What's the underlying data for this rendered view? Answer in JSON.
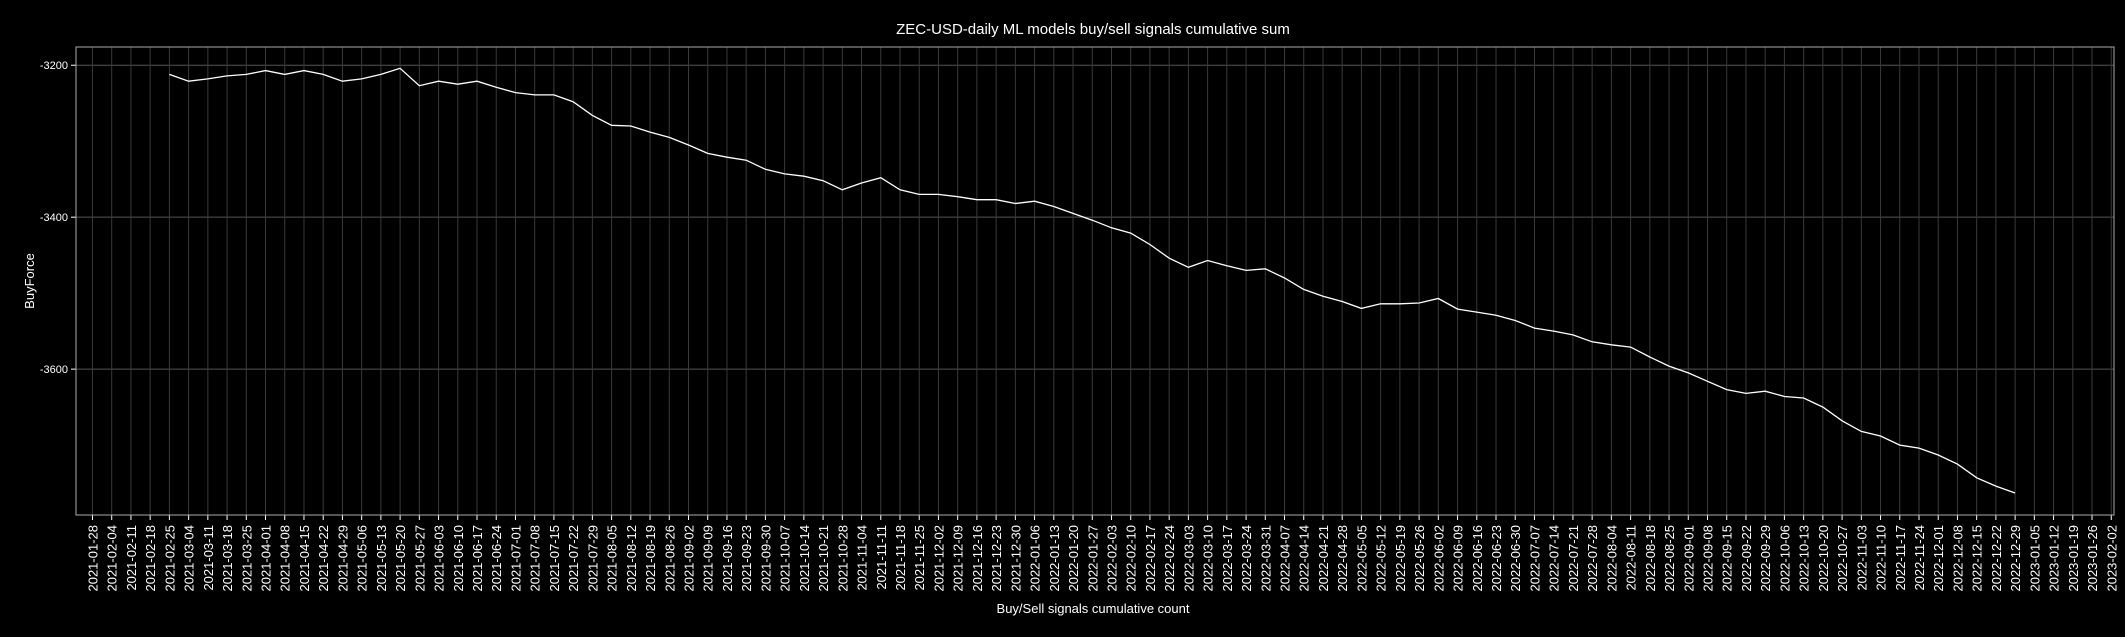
{
  "chart_data": {
    "type": "line",
    "title": "ZEC-USD-daily ML models buy/sell signals cumulative sum",
    "xlabel": "Buy/Sell signals cumulative count",
    "ylabel": "BuyForce",
    "color": "#ffffff",
    "grid": true,
    "x": [
      "2021-02-25",
      "2021-03-04",
      "2021-03-11",
      "2021-03-18",
      "2021-03-25",
      "2021-04-01",
      "2021-04-08",
      "2021-04-15",
      "2021-04-22",
      "2021-04-29",
      "2021-05-06",
      "2021-05-13",
      "2021-05-20",
      "2021-05-27",
      "2021-06-03",
      "2021-06-10",
      "2021-06-17",
      "2021-06-24",
      "2021-07-01",
      "2021-07-08",
      "2021-07-15",
      "2021-07-22",
      "2021-07-29",
      "2021-08-05",
      "2021-08-12",
      "2021-08-19",
      "2021-08-26",
      "2021-09-02",
      "2021-09-09",
      "2021-09-16",
      "2021-09-23",
      "2021-09-30",
      "2021-10-07",
      "2021-10-14",
      "2021-10-21",
      "2021-10-28",
      "2021-11-04",
      "2021-11-11",
      "2021-11-18",
      "2021-11-25",
      "2021-12-02",
      "2021-12-09",
      "2021-12-16",
      "2021-12-23",
      "2021-12-30",
      "2022-01-06",
      "2022-01-13",
      "2022-01-20",
      "2022-01-27",
      "2022-02-03",
      "2022-02-10",
      "2022-02-17",
      "2022-02-24",
      "2022-03-03",
      "2022-03-10",
      "2022-03-17",
      "2022-03-24",
      "2022-03-31",
      "2022-04-07",
      "2022-04-14",
      "2022-04-21",
      "2022-04-28",
      "2022-05-05",
      "2022-05-12",
      "2022-05-19",
      "2022-05-26",
      "2022-06-02",
      "2022-06-09",
      "2022-06-16",
      "2022-06-23",
      "2022-06-30",
      "2022-07-07",
      "2022-07-14",
      "2022-07-21",
      "2022-07-28",
      "2022-08-04",
      "2022-08-11",
      "2022-08-18",
      "2022-08-25",
      "2022-09-01",
      "2022-09-08",
      "2022-09-15",
      "2022-09-22",
      "2022-09-29",
      "2022-10-06",
      "2022-10-13",
      "2022-10-20",
      "2022-10-27",
      "2022-11-03",
      "2022-11-10",
      "2022-11-17",
      "2022-11-24",
      "2022-12-01",
      "2022-12-08",
      "2022-12-15",
      "2022-12-22",
      "2022-12-29"
    ],
    "values": [
      -3212,
      -3221,
      -3218,
      -3214,
      -3212,
      -3207,
      -3212,
      -3207,
      -3212,
      -3221,
      -3218,
      -3212,
      -3204,
      -3227,
      -3221,
      -3225,
      -3221,
      -3229,
      -3236,
      -3239,
      -3239,
      -3248,
      -3266,
      -3279,
      -3280,
      -3288,
      -3295,
      -3305,
      -3316,
      -3321,
      -3325,
      -3337,
      -3343,
      -3346,
      -3352,
      -3364,
      -3355,
      -3348,
      -3364,
      -3370,
      -3370,
      -3373,
      -3377,
      -3377,
      -3382,
      -3379,
      -3386,
      -3395,
      -3404,
      -3414,
      -3421,
      -3436,
      -3454,
      -3466,
      -3457,
      -3464,
      -3470,
      -3468,
      -3480,
      -3495,
      -3504,
      -3511,
      -3520,
      -3514,
      -3514,
      -3513,
      -3507,
      -3521,
      -3525,
      -3529,
      -3536,
      -3546,
      -3550,
      -3555,
      -3564,
      -3568,
      -3571,
      -3584,
      -3596,
      -3605,
      -3616,
      -3627,
      -3632,
      -3629,
      -3636,
      -3638,
      -3650,
      -3668,
      -3682,
      -3688,
      -3700,
      -3704,
      -3713,
      -3725,
      -3743,
      -3754,
      -3763
    ],
    "xlim": [
      "2021-01-22",
      "2023-02-03"
    ],
    "xticks": [
      "2021-01-28",
      "2021-02-04",
      "2021-02-11",
      "2021-02-18",
      "2021-02-25",
      "2021-03-04",
      "2021-03-11",
      "2021-03-18",
      "2021-03-25",
      "2021-04-01",
      "2021-04-08",
      "2021-04-15",
      "2021-04-22",
      "2021-04-29",
      "2021-05-06",
      "2021-05-13",
      "2021-05-20",
      "2021-05-27",
      "2021-06-03",
      "2021-06-10",
      "2021-06-17",
      "2021-06-24",
      "2021-07-01",
      "2021-07-08",
      "2021-07-15",
      "2021-07-22",
      "2021-07-29",
      "2021-08-05",
      "2021-08-12",
      "2021-08-19",
      "2021-08-26",
      "2021-09-02",
      "2021-09-09",
      "2021-09-16",
      "2021-09-23",
      "2021-09-30",
      "2021-10-07",
      "2021-10-14",
      "2021-10-21",
      "2021-10-28",
      "2021-11-04",
      "2021-11-11",
      "2021-11-18",
      "2021-11-25",
      "2021-12-02",
      "2021-12-09",
      "2021-12-16",
      "2021-12-23",
      "2021-12-30",
      "2022-01-06",
      "2022-01-13",
      "2022-01-20",
      "2022-01-27",
      "2022-02-03",
      "2022-02-10",
      "2022-02-17",
      "2022-02-24",
      "2022-03-03",
      "2022-03-10",
      "2022-03-17",
      "2022-03-24",
      "2022-03-31",
      "2022-04-07",
      "2022-04-14",
      "2022-04-21",
      "2022-04-28",
      "2022-05-05",
      "2022-05-12",
      "2022-05-19",
      "2022-05-26",
      "2022-06-02",
      "2022-06-09",
      "2022-06-16",
      "2022-06-23",
      "2022-06-30",
      "2022-07-07",
      "2022-07-14",
      "2022-07-21",
      "2022-07-28",
      "2022-08-04",
      "2022-08-11",
      "2022-08-18",
      "2022-08-25",
      "2022-09-01",
      "2022-09-08",
      "2022-09-15",
      "2022-09-22",
      "2022-09-29",
      "2022-10-06",
      "2022-10-13",
      "2022-10-20",
      "2022-10-27",
      "2022-11-03",
      "2022-11-10",
      "2022-11-17",
      "2022-11-24",
      "2022-12-01",
      "2022-12-08",
      "2022-12-15",
      "2022-12-22",
      "2022-12-29",
      "2023-01-05",
      "2023-01-12",
      "2023-01-19",
      "2023-01-26",
      "2023-02-02"
    ],
    "ylim": [
      -3792,
      -3176
    ],
    "yticks": [
      -3200,
      -3400,
      -3600
    ]
  }
}
